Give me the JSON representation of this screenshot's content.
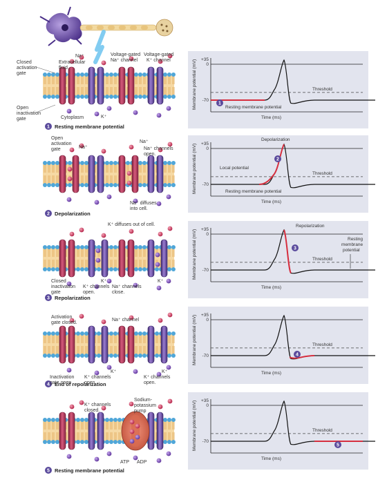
{
  "top_labels": {
    "na": "Na⁺",
    "extracellular": "Extracellular",
    "fluid": "fluid",
    "vg_na_1": "Voltage-gated",
    "vg_na_2": "Na⁺ channel",
    "vg_k_1": "Voltage-gated",
    "vg_k_2": "K⁺ channel",
    "closed_act_1": "Closed",
    "closed_act_2": "activation",
    "closed_act_3": "gate",
    "open_inact_1": "Open",
    "open_inact_2": "inactivation",
    "open_inact_3": "gate",
    "cytoplasm": "Cytoplasm",
    "k": "K⁺"
  },
  "panels": [
    {
      "step": "1",
      "caption": "Resting membrane potential",
      "labels": []
    },
    {
      "step": "2",
      "caption": "Depolarization",
      "labels": {
        "open_act_1": "Open",
        "open_act_2": "activation",
        "open_act_3": "gate",
        "na_a": "Na⁺",
        "na_b": "Na⁺",
        "na_open_1": "Na⁺ channels",
        "na_open_2": "open.",
        "na_diff_1": "Na⁺ diffuses",
        "na_diff_2": "into cell."
      }
    },
    {
      "step": "3",
      "caption": "Repolarization",
      "labels": {
        "k_diff": "K⁺ diffuses out of cell.",
        "closed_1": "Closed",
        "closed_2": "inactivation",
        "closed_3": "gate",
        "k_open_1": "K⁺ channels",
        "k_open_2": "open.",
        "k_a": "K⁺",
        "k_b": "K⁺",
        "na_close_1": "Na⁺ channels",
        "na_close_2": "close."
      }
    },
    {
      "step": "4",
      "caption": "End of repolarization",
      "labels": {
        "act_closed_1": "Activation",
        "act_closed_2": "gate closed.",
        "na_channel": "Na⁺ channel",
        "inact_open_1": "Inactivation",
        "inact_open_2": "gate open",
        "k_open_a1": "K⁺ channels",
        "k_open_a2": "open.",
        "k_open_b1": "K⁺ channels",
        "k_open_b2": "open.",
        "k_a": "K⁺",
        "k_b": "K⁺"
      }
    },
    {
      "step": "5",
      "caption": "Resting membrane potential",
      "labels": {
        "k_closed_1": "K⁺ channels",
        "k_closed_2": "closed.",
        "pump_1": "Sodium-",
        "pump_2": "potassium",
        "pump_3": "pump",
        "atp": "ATP",
        "adp": "ADP"
      }
    }
  ],
  "graphs": {
    "ylabel": "Membrane potential (mV)",
    "xlabel": "Time (ms)",
    "y_ticks": [
      "+35",
      "0",
      "-70"
    ],
    "threshold_label": "Threshold",
    "g1": {
      "rmp": "Resting membrane potential"
    },
    "g2": {
      "depol": "Depolarization",
      "local": "Local potential",
      "rmp": "Resting membrane potential"
    },
    "g3": {
      "repol": "Repolarization",
      "rmp_1": "Resting",
      "rmp_2": "membrane",
      "rmp_3": "potential"
    },
    "g4": {},
    "g5": {}
  },
  "chart_data": [
    {
      "type": "line",
      "ylabel": "Membrane potential (mV)",
      "xlabel": "Time (ms)",
      "y_ticks": [
        35,
        0,
        -70
      ],
      "threshold_mv": -55,
      "resting_mv": -70,
      "peak_mv": 30,
      "highlight": "resting phase"
    },
    {
      "type": "line",
      "ylabel": "Membrane potential (mV)",
      "xlabel": "Time (ms)",
      "y_ticks": [
        35,
        0,
        -70
      ],
      "threshold_mv": -55,
      "highlight": "depolarization"
    },
    {
      "type": "line",
      "ylabel": "Membrane potential (mV)",
      "xlabel": "Time (ms)",
      "y_ticks": [
        35,
        0,
        -70
      ],
      "threshold_mv": -55,
      "highlight": "repolarization"
    },
    {
      "type": "line",
      "ylabel": "Membrane potential (mV)",
      "xlabel": "Time (ms)",
      "y_ticks": [
        35,
        0,
        -70
      ],
      "threshold_mv": -55,
      "highlight": "hyperpolarization"
    },
    {
      "type": "line",
      "ylabel": "Membrane potential (mV)",
      "xlabel": "Time (ms)",
      "y_ticks": [
        35,
        0,
        -70
      ],
      "threshold_mv": -55,
      "highlight": "return to resting"
    }
  ],
  "colors": {
    "graph_bg": "#e2e4ee",
    "highlight": "#d62e3e",
    "step_circle": "#5a4a9c",
    "na_channel": "#b23a5a",
    "k_channel": "#6a4a9c",
    "membrane_head": "#4fa6d8",
    "membrane_tail": "#f2c27a"
  }
}
